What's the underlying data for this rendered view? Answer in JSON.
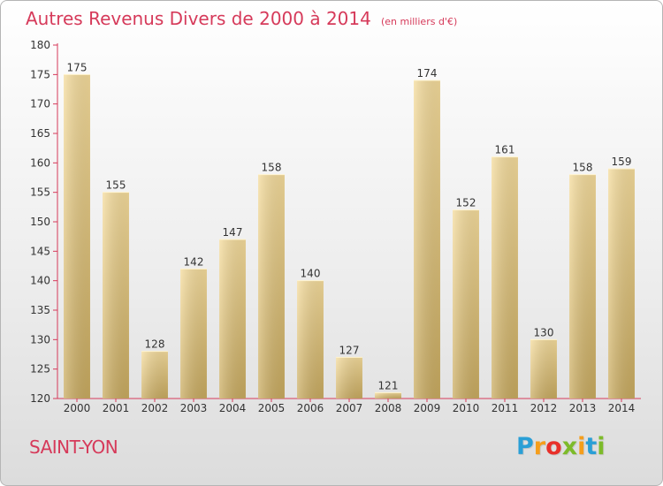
{
  "chart_data": {
    "type": "bar",
    "title": "Autres Revenus Divers de 2000 à 2014",
    "unit_label": "(en milliers d'€)",
    "categories": [
      "2000",
      "2001",
      "2002",
      "2003",
      "2004",
      "2005",
      "2006",
      "2007",
      "2008",
      "2009",
      "2010",
      "2011",
      "2012",
      "2013",
      "2014"
    ],
    "values": [
      175,
      155,
      128,
      142,
      147,
      158,
      140,
      127,
      121,
      174,
      152,
      161,
      130,
      158,
      159
    ],
    "ylim": [
      120,
      180
    ],
    "yticks": [
      120,
      125,
      130,
      135,
      140,
      145,
      150,
      155,
      160,
      165,
      170,
      175,
      180
    ],
    "xlabel": "",
    "ylabel": "",
    "grid": false,
    "bar_color": "#e8cc85",
    "axis_color": "#d63a5a"
  },
  "location": "SAINT-YON",
  "brand": {
    "text": "Proxiti",
    "letters": [
      "P",
      "r",
      "o",
      "x",
      "i",
      "t",
      "i"
    ],
    "letter_colors": [
      "#2a9fd6",
      "#f59e1b",
      "#e8302a",
      "#7dbb2a",
      "#f59e1b",
      "#2a9fd6",
      "#7dbb2a"
    ]
  }
}
